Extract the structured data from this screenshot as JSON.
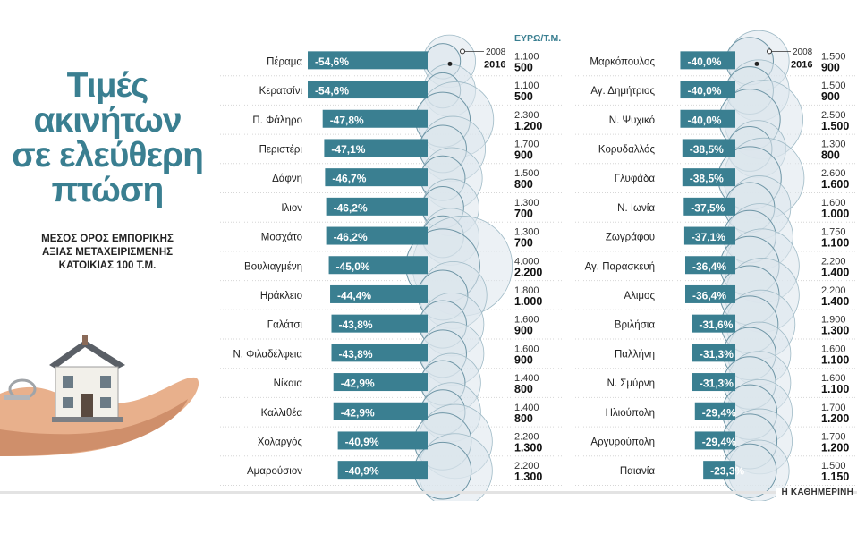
{
  "title": [
    "Τιμές",
    "ακινήτων",
    "σε ελεύθερη",
    "πτώση"
  ],
  "subtitle": [
    "ΜΕΣΟΣ ΟΡΟΣ ΕΜΠΟΡΙΚΗΣ",
    "ΑΞΙΑΣ ΜΕΤΑΧΕΙΡΙΣΜΕΝΗΣ",
    "ΚΑΤΟΙΚΙΑΣ 100 Τ.Μ."
  ],
  "unit": "ΕΥΡΩ/Τ.Μ.",
  "legend": {
    "year_old": "2008",
    "year_new": "2016"
  },
  "source": "Η ΚΑΘΗΜΕΡΙΝΗ",
  "colors": {
    "bar": "#3a7f91",
    "circle": "#dce6ec",
    "circle_stroke": "#9fbac6",
    "title": "#3a7f91"
  },
  "chart_data": {
    "type": "bar",
    "value_label_format": "percent, comma decimal",
    "columns": [
      {
        "categories": [
          "Πέραμα",
          "Κερατσίνι",
          "Π. Φάληρο",
          "Περιστέρι",
          "Δάφνη",
          "Ιλιον",
          "Μοσχάτο",
          "Βουλιαγμένη",
          "Ηράκλειο",
          "Γαλάτσι",
          "Ν. Φιλαδέλφεια",
          "Νίκαια",
          "Καλλιθέα",
          "Χολαργός",
          "Αμαρούσιον"
        ],
        "change_pct": [
          -54.6,
          -54.6,
          -47.8,
          -47.1,
          -46.7,
          -46.2,
          -46.2,
          -45.0,
          -44.4,
          -43.8,
          -43.8,
          -42.9,
          -42.9,
          -40.9,
          -40.9
        ],
        "change_labels": [
          "-54,6%",
          "-54,6%",
          "-47,8%",
          "-47,1%",
          "-46,7%",
          "-46,2%",
          "-46,2%",
          "-45,0%",
          "-44,4%",
          "-43,8%",
          "-43,8%",
          "-42,9%",
          "-42,9%",
          "-40,9%",
          "-40,9%"
        ],
        "price_2008": [
          1100,
          1100,
          2300,
          1700,
          1500,
          1300,
          1300,
          4000,
          1800,
          1600,
          1600,
          1400,
          1400,
          2200,
          2200
        ],
        "price_2016": [
          500,
          500,
          1200,
          900,
          800,
          700,
          700,
          2200,
          1000,
          900,
          900,
          800,
          800,
          1300,
          1300
        ],
        "price_2008_labels": [
          "1.100",
          "1.100",
          "2.300",
          "1.700",
          "1.500",
          "1.300",
          "1.300",
          "4.000",
          "1.800",
          "1.600",
          "1.600",
          "1.400",
          "1.400",
          "2.200",
          "2.200"
        ],
        "price_2016_labels": [
          "500",
          "500",
          "1.200",
          "900",
          "800",
          "700",
          "700",
          "2.200",
          "1.000",
          "900",
          "900",
          "800",
          "800",
          "1.300",
          "1.300"
        ]
      },
      {
        "categories": [
          "Μαρκόπουλος",
          "Αγ. Δημήτριος",
          "Ν. Ψυχικό",
          "Κορυδαλλός",
          "Γλυφάδα",
          "Ν. Ιωνία",
          "Ζωγράφου",
          "Αγ. Παρασκευή",
          "Αλιμος",
          "Βριλήσια",
          "Παλλήνη",
          "Ν. Σμύρνη",
          "Ηλιούπολη",
          "Αργυρούπολη",
          "Παιανία"
        ],
        "change_pct": [
          -40.0,
          -40.0,
          -40.0,
          -38.5,
          -38.5,
          -37.5,
          -37.1,
          -36.4,
          -36.4,
          -31.6,
          -31.3,
          -31.3,
          -29.4,
          -29.4,
          -23.3
        ],
        "change_labels": [
          "-40,0%",
          "-40,0%",
          "-40,0%",
          "-38,5%",
          "-38,5%",
          "-37,5%",
          "-37,1%",
          "-36,4%",
          "-36,4%",
          "-31,6%",
          "-31,3%",
          "-31,3%",
          "-29,4%",
          "-29,4%",
          "-23,3%"
        ],
        "price_2008": [
          1500,
          1500,
          2500,
          1300,
          2600,
          1600,
          1750,
          2200,
          2200,
          1900,
          1600,
          1600,
          1700,
          1700,
          1500
        ],
        "price_2016": [
          900,
          900,
          1500,
          800,
          1600,
          1000,
          1100,
          1400,
          1400,
          1300,
          1100,
          1100,
          1200,
          1200,
          1150
        ],
        "price_2008_labels": [
          "1.500",
          "1.500",
          "2.500",
          "1.300",
          "2.600",
          "1.600",
          "1.750",
          "2.200",
          "2.200",
          "1.900",
          "1.600",
          "1.600",
          "1.700",
          "1.700",
          "1.500"
        ],
        "price_2016_labels": [
          "900",
          "900",
          "1.500",
          "800",
          "1.600",
          "1.000",
          "1.100",
          "1.400",
          "1.400",
          "1.300",
          "1.100",
          "1.100",
          "1.200",
          "1.200",
          "1.150"
        ]
      }
    ]
  }
}
